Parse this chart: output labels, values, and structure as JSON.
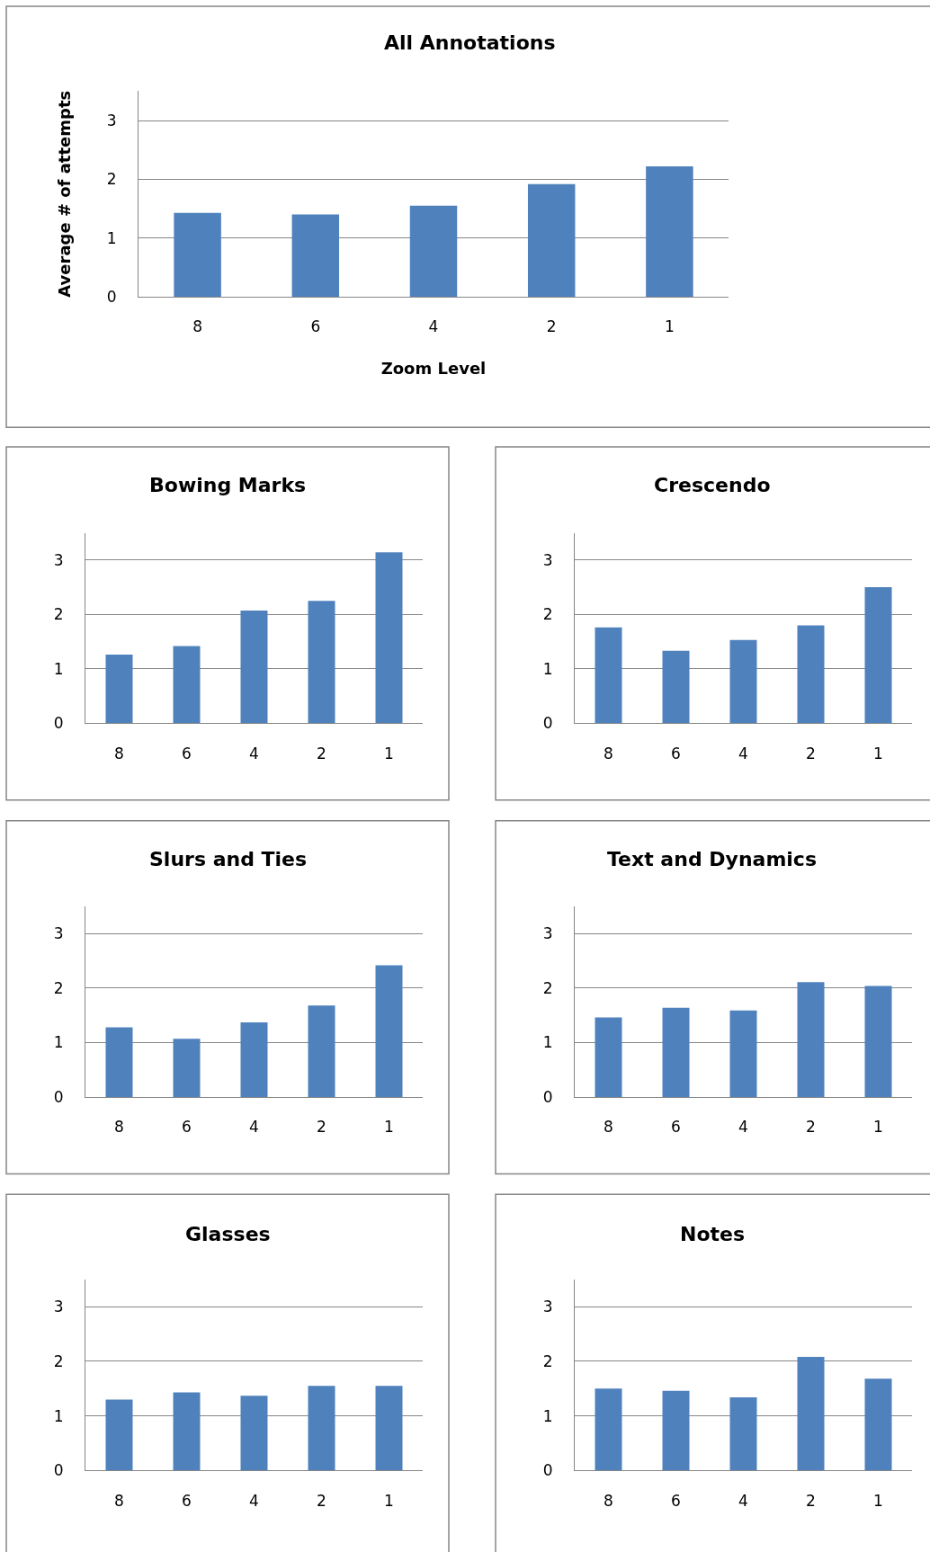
{
  "chart_data": [
    {
      "type": "bar",
      "title": "All Annotations",
      "xlabel": "Zoom Level",
      "ylabel": "Average # of attempts",
      "categories": [
        "8",
        "6",
        "4",
        "2",
        "1"
      ],
      "values": [
        1.43,
        1.4,
        1.55,
        1.92,
        2.22
      ],
      "color": "#4f81bd",
      "ylim": [
        0,
        3.5
      ],
      "yticks": [
        0,
        1,
        2,
        3
      ],
      "grid": "y"
    },
    {
      "type": "bar",
      "title": "Bowing Marks",
      "categories": [
        "8",
        "6",
        "4",
        "2",
        "1"
      ],
      "values": [
        1.26,
        1.42,
        2.07,
        2.25,
        3.14
      ],
      "color": "#4f81bd",
      "ylim": [
        0,
        3.5
      ],
      "yticks": [
        0,
        1,
        2,
        3
      ],
      "grid": "y"
    },
    {
      "type": "bar",
      "title": "Crescendo",
      "categories": [
        "8",
        "6",
        "4",
        "2",
        "1"
      ],
      "values": [
        1.76,
        1.33,
        1.53,
        1.8,
        2.5
      ],
      "color": "#4f81bd",
      "ylim": [
        0,
        3.5
      ],
      "yticks": [
        0,
        1,
        2,
        3
      ],
      "grid": "y"
    },
    {
      "type": "bar",
      "title": "Slurs and Ties",
      "categories": [
        "8",
        "6",
        "4",
        "2",
        "1"
      ],
      "values": [
        1.28,
        1.07,
        1.37,
        1.68,
        2.42
      ],
      "color": "#4f81bd",
      "ylim": [
        0,
        3.5
      ],
      "yticks": [
        0,
        1,
        2,
        3
      ],
      "grid": "y"
    },
    {
      "type": "bar",
      "title": "Text and Dynamics",
      "categories": [
        "8",
        "6",
        "4",
        "2",
        "1"
      ],
      "values": [
        1.46,
        1.64,
        1.59,
        2.11,
        2.04
      ],
      "color": "#4f81bd",
      "ylim": [
        0,
        3.5
      ],
      "yticks": [
        0,
        1,
        2,
        3
      ],
      "grid": "y"
    },
    {
      "type": "bar",
      "title": "Glasses",
      "categories": [
        "8",
        "6",
        "4",
        "2",
        "1"
      ],
      "values": [
        1.3,
        1.43,
        1.37,
        1.55,
        1.55
      ],
      "color": "#4f81bd",
      "ylim": [
        0,
        3.5
      ],
      "yticks": [
        0,
        1,
        2,
        3
      ],
      "grid": "y"
    },
    {
      "type": "bar",
      "title": "Notes",
      "categories": [
        "8",
        "6",
        "4",
        "2",
        "1"
      ],
      "values": [
        1.5,
        1.46,
        1.34,
        2.08,
        1.68
      ],
      "color": "#4f81bd",
      "ylim": [
        0,
        3.5
      ],
      "yticks": [
        0,
        1,
        2,
        3
      ],
      "grid": "y"
    }
  ]
}
